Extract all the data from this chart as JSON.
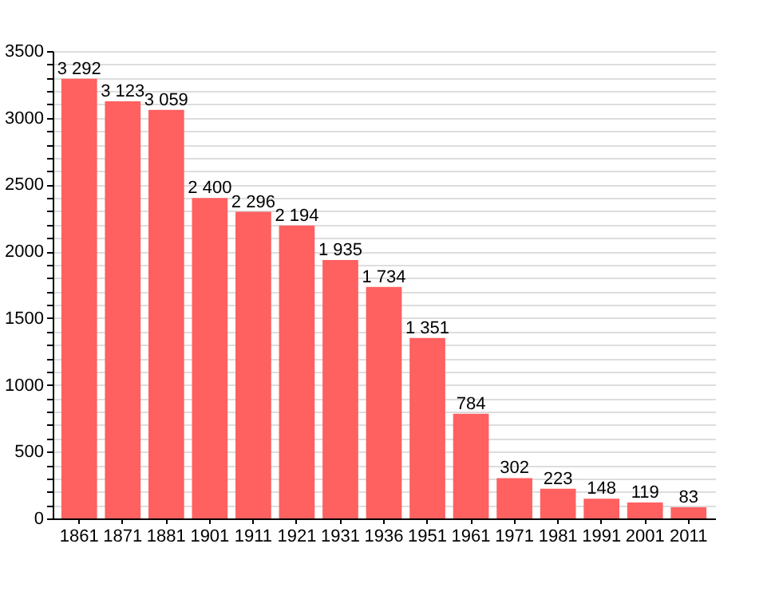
{
  "chart_data": {
    "type": "bar",
    "categories": [
      "1861",
      "1871",
      "1881",
      "1901",
      "1911",
      "1921",
      "1931",
      "1936",
      "1951",
      "1961",
      "1971",
      "1981",
      "1991",
      "2001",
      "2011"
    ],
    "values": [
      3292,
      3123,
      3059,
      2400,
      2296,
      2194,
      1935,
      1734,
      1351,
      784,
      302,
      223,
      148,
      119,
      83
    ],
    "value_labels": [
      "3 292",
      "3 123",
      "3 059",
      "2 400",
      "2 296",
      "2 194",
      "1 935",
      "1 734",
      "1 351",
      "784",
      "302",
      "223",
      "148",
      "119",
      "83"
    ],
    "color": "#ff6060",
    "ylim": [
      0,
      3500
    ],
    "yticks": [
      0,
      {
        "value": 100,
        "label": null
      },
      {
        "value": 200,
        "label": null
      },
      {
        "value": 300,
        "label": null
      },
      {
        "value": 400,
        "label": null
      },
      500,
      {
        "value": 600,
        "label": null
      },
      {
        "value": 700,
        "label": null
      },
      {
        "value": 800,
        "label": null
      },
      {
        "value": 900,
        "label": null
      },
      1000,
      {
        "value": 1100,
        "label": null
      },
      {
        "value": 1200,
        "label": null
      },
      {
        "value": 1300,
        "label": null
      },
      {
        "value": 1400,
        "label": null
      },
      1500,
      {
        "value": 1600,
        "label": null
      },
      {
        "value": 1700,
        "label": null
      },
      {
        "value": 1800,
        "label": null
      },
      {
        "value": 1900,
        "label": null
      },
      2000,
      {
        "value": 2100,
        "label": null
      },
      {
        "value": 2200,
        "label": null
      },
      {
        "value": 2300,
        "label": null
      },
      {
        "value": 2400,
        "label": null
      },
      2500,
      {
        "value": 2600,
        "label": null
      },
      {
        "value": 2700,
        "label": null
      },
      {
        "value": 2800,
        "label": null
      },
      {
        "value": 2900,
        "label": null
      },
      3000,
      {
        "value": 3100,
        "label": null
      },
      {
        "value": 3200,
        "label": null
      },
      {
        "value": 3300,
        "label": null
      },
      {
        "value": 3400,
        "label": null
      },
      3500
    ],
    "grid": true
  }
}
